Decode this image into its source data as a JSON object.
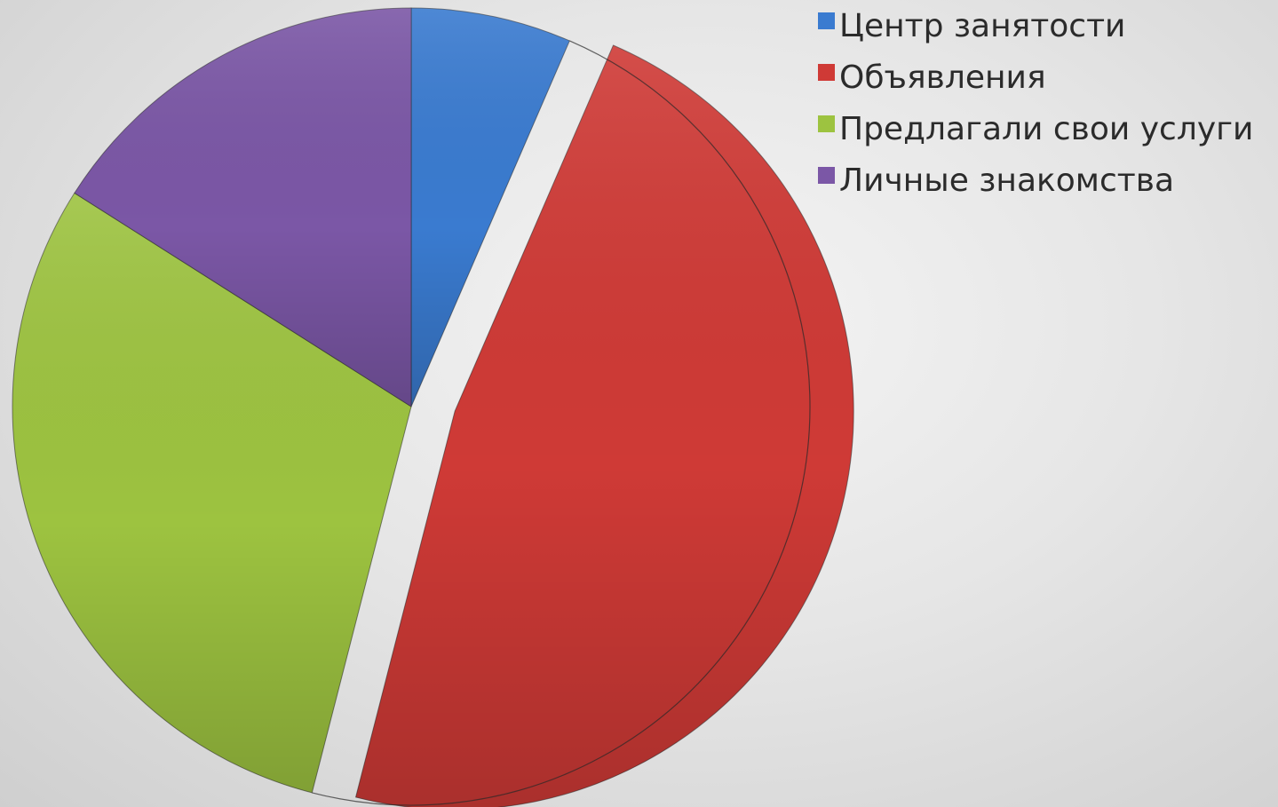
{
  "chart_data": {
    "type": "pie",
    "title": "",
    "exploded_slice": "Объявления",
    "slices": [
      {
        "label": "Центр занятости",
        "value": 6.5,
        "color": "#3a7bd0"
      },
      {
        "label": "Объявления",
        "value": 47.5,
        "color": "#cf3a36"
      },
      {
        "label": "Предлагали свои услуги",
        "value": 30,
        "color": "#9dc340"
      },
      {
        "label": "Личные знакомства",
        "value": 16,
        "color": "#7b57a6"
      }
    ],
    "legend": {
      "position": "top-right",
      "items": [
        {
          "label": "Центр занятости",
          "color": "#3a7bd0"
        },
        {
          "label": "Объявления",
          "color": "#cf3a36"
        },
        {
          "label": "Предлагали свои услуги",
          "color": "#9dc340"
        },
        {
          "label": "Личные знакомства",
          "color": "#7b57a6"
        }
      ]
    }
  }
}
